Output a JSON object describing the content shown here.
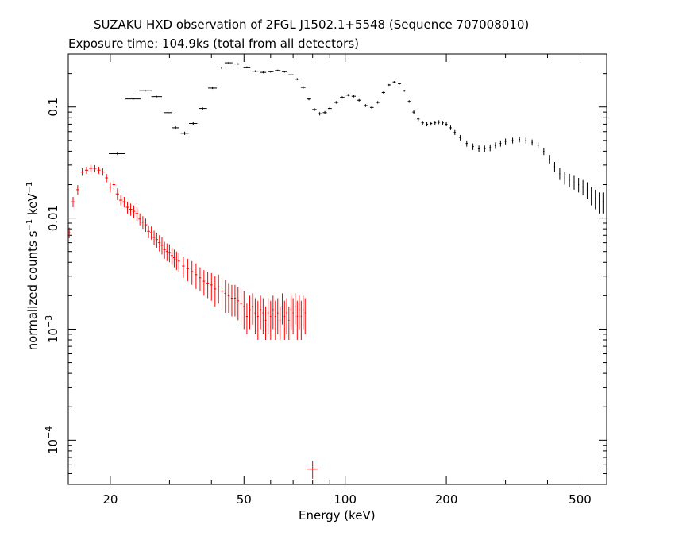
{
  "chart_data": {
    "type": "scatter",
    "title": "SUZAKU HXD observation of 2FGL J1502.1+5548 (Sequence 707008010)",
    "subtitle": "Exposure time: 104.9ks (total from all detectors)",
    "xlabel": "Energy (keV)",
    "ylabel": {
      "part1": "normalized counts s",
      "exp1": "−1",
      "part2": " keV",
      "exp2": "−1"
    },
    "x_scale": "log",
    "y_scale": "log",
    "xlim": [
      15,
      600
    ],
    "ylim": [
      4e-05,
      0.3
    ],
    "x_ticks": [
      {
        "value": 20,
        "label": "20"
      },
      {
        "value": 50,
        "label": "50"
      },
      {
        "value": 100,
        "label": "100"
      },
      {
        "value": 200,
        "label": "200"
      },
      {
        "value": 500,
        "label": "500"
      }
    ],
    "y_ticks": [
      {
        "value": 0.1,
        "base": "0.1",
        "exp": ""
      },
      {
        "value": 0.01,
        "base": "0.01",
        "exp": ""
      },
      {
        "value": 0.001,
        "base": "10",
        "exp": "−3"
      },
      {
        "value": 0.0001,
        "base": "10",
        "exp": "−4"
      }
    ],
    "series": [
      {
        "color": "#000000",
        "points": [
          [
            21.0,
            0.038,
            1.2,
            0.001
          ],
          [
            23.4,
            0.118,
            1.2,
            0.002
          ],
          [
            25.5,
            0.14,
            1.1,
            0.002
          ],
          [
            27.5,
            0.124,
            1.0,
            0.002
          ],
          [
            29.7,
            0.089,
            0.9,
            0.002
          ],
          [
            31.3,
            0.065,
            0.8,
            0.002
          ],
          [
            33.3,
            0.058,
            0.9,
            0.002
          ],
          [
            35.3,
            0.071,
            1.0,
            0.002
          ],
          [
            37.7,
            0.097,
            1.1,
            0.002
          ],
          [
            40.3,
            0.148,
            1.2,
            0.003
          ],
          [
            42.8,
            0.225,
            1.3,
            0.004
          ],
          [
            45.0,
            0.25,
            1.2,
            0.004
          ],
          [
            48.0,
            0.244,
            1.2,
            0.004
          ],
          [
            51.0,
            0.228,
            1.2,
            0.004
          ],
          [
            54.0,
            0.21,
            1.2,
            0.004
          ],
          [
            57.0,
            0.205,
            1.2,
            0.004
          ],
          [
            60.0,
            0.208,
            1.2,
            0.004
          ],
          [
            63.0,
            0.213,
            1.2,
            0.004
          ],
          [
            66.0,
            0.208,
            1.2,
            0.004
          ],
          [
            69.0,
            0.195,
            1.2,
            0.004
          ],
          [
            72.0,
            0.178,
            1.2,
            0.004
          ],
          [
            75.0,
            0.15,
            1.2,
            0.004
          ],
          [
            78.0,
            0.118,
            1.2,
            0.003
          ],
          [
            81.0,
            0.095,
            1.2,
            0.003
          ],
          [
            84.0,
            0.087,
            1.2,
            0.003
          ],
          [
            87.0,
            0.089,
            1.2,
            0.003
          ],
          [
            90.0,
            0.097,
            1.2,
            0.003
          ],
          [
            94.0,
            0.11,
            1.5,
            0.003
          ],
          [
            98.0,
            0.122,
            1.5,
            0.003
          ],
          [
            102.0,
            0.128,
            1.5,
            0.003
          ],
          [
            106.0,
            0.125,
            1.5,
            0.003
          ],
          [
            110.0,
            0.115,
            1.5,
            0.003
          ],
          [
            115.0,
            0.103,
            1.5,
            0.003
          ],
          [
            120.0,
            0.099,
            1.5,
            0.003
          ],
          [
            125.0,
            0.11,
            1.5,
            0.003
          ],
          [
            130.0,
            0.135,
            1.5,
            0.003
          ],
          [
            135.0,
            0.158,
            1.5,
            0.003
          ],
          [
            140.0,
            0.168,
            1.5,
            0.003
          ],
          [
            145.0,
            0.162,
            1.5,
            0.003
          ],
          [
            150.0,
            0.14,
            1.5,
            0.003
          ],
          [
            155.0,
            0.112,
            1.5,
            0.003
          ],
          [
            160.0,
            0.09,
            1.5,
            0.003
          ],
          [
            165.0,
            0.078,
            1.5,
            0.003
          ],
          [
            170.0,
            0.072,
            1.5,
            0.003
          ],
          [
            175.0,
            0.07,
            1.5,
            0.003
          ],
          [
            180.0,
            0.071,
            1.5,
            0.003
          ],
          [
            185.0,
            0.072,
            1.5,
            0.003
          ],
          [
            190.0,
            0.073,
            1.5,
            0.003
          ],
          [
            195.0,
            0.072,
            1.5,
            0.003
          ],
          [
            200.0,
            0.07,
            1.5,
            0.003
          ],
          [
            206.0,
            0.065,
            1.5,
            0.003
          ],
          [
            212.0,
            0.059,
            1.5,
            0.003
          ],
          [
            220.0,
            0.053,
            1.5,
            0.003
          ],
          [
            230.0,
            0.047,
            1.5,
            0.003
          ],
          [
            240.0,
            0.044,
            1.5,
            0.003
          ],
          [
            250.0,
            0.042,
            1.5,
            0.003
          ],
          [
            260.0,
            0.042,
            1.5,
            0.003
          ],
          [
            270.0,
            0.043,
            1.5,
            0.003
          ],
          [
            280.0,
            0.045,
            1.5,
            0.003
          ],
          [
            290.0,
            0.047,
            1.5,
            0.003
          ],
          [
            300.0,
            0.049,
            1.5,
            0.003
          ],
          [
            315.0,
            0.05,
            1.5,
            0.003
          ],
          [
            330.0,
            0.051,
            1.5,
            0.003
          ],
          [
            345.0,
            0.05,
            1.5,
            0.003
          ],
          [
            360.0,
            0.048,
            1.5,
            0.003
          ],
          [
            375.0,
            0.045,
            1.5,
            0.003
          ],
          [
            390.0,
            0.04,
            1.5,
            0.003
          ],
          [
            405.0,
            0.034,
            1.5,
            0.003
          ],
          [
            420.0,
            0.029,
            1.5,
            0.003
          ],
          [
            435.0,
            0.025,
            1.5,
            0.003
          ],
          [
            450.0,
            0.023,
            1.5,
            0.003
          ],
          [
            465.0,
            0.022,
            1.5,
            0.003
          ],
          [
            480.0,
            0.021,
            1.5,
            0.003
          ],
          [
            495.0,
            0.02,
            1.5,
            0.003
          ],
          [
            510.0,
            0.019,
            1.5,
            0.003
          ],
          [
            525.0,
            0.018,
            1.5,
            0.003
          ],
          [
            540.0,
            0.016,
            1.5,
            0.003
          ],
          [
            555.0,
            0.015,
            1.5,
            0.003
          ],
          [
            570.0,
            0.014,
            1.5,
            0.003
          ],
          [
            585.0,
            0.014,
            1.5,
            0.003
          ]
        ]
      },
      {
        "color": "#ff0000",
        "points": [
          [
            15.1,
            0.0074,
            0.1,
            0.0008
          ],
          [
            15.5,
            0.014,
            0.15,
            0.0015
          ],
          [
            16.0,
            0.018,
            0.15,
            0.0018
          ],
          [
            16.5,
            0.026,
            0.2,
            0.002
          ],
          [
            17.0,
            0.027,
            0.2,
            0.002
          ],
          [
            17.5,
            0.028,
            0.2,
            0.002
          ],
          [
            18.0,
            0.028,
            0.2,
            0.002
          ],
          [
            18.5,
            0.027,
            0.2,
            0.002
          ],
          [
            19.0,
            0.026,
            0.2,
            0.002
          ],
          [
            19.5,
            0.023,
            0.2,
            0.002
          ],
          [
            20.0,
            0.019,
            0.2,
            0.002
          ],
          [
            20.5,
            0.02,
            0.2,
            0.002
          ],
          [
            21.0,
            0.0165,
            0.25,
            0.002
          ],
          [
            21.5,
            0.0145,
            0.25,
            0.0015
          ],
          [
            22.0,
            0.014,
            0.25,
            0.0015
          ],
          [
            22.5,
            0.0125,
            0.25,
            0.0015
          ],
          [
            23.0,
            0.012,
            0.25,
            0.0015
          ],
          [
            23.5,
            0.0115,
            0.25,
            0.0015
          ],
          [
            24.0,
            0.011,
            0.25,
            0.0015
          ],
          [
            24.5,
            0.0098,
            0.25,
            0.0012
          ],
          [
            25.0,
            0.0092,
            0.25,
            0.0012
          ],
          [
            25.5,
            0.0087,
            0.25,
            0.0012
          ],
          [
            26.0,
            0.0076,
            0.25,
            0.001
          ],
          [
            26.5,
            0.0074,
            0.25,
            0.001
          ],
          [
            27.0,
            0.0067,
            0.25,
            0.001
          ],
          [
            27.5,
            0.0064,
            0.25,
            0.001
          ],
          [
            28.0,
            0.006,
            0.25,
            0.001
          ],
          [
            28.5,
            0.0057,
            0.25,
            0.001
          ],
          [
            29.0,
            0.0052,
            0.25,
            0.0009
          ],
          [
            29.5,
            0.005,
            0.25,
            0.0009
          ],
          [
            30.0,
            0.0049,
            0.25,
            0.0009
          ],
          [
            30.5,
            0.0046,
            0.25,
            0.0008
          ],
          [
            31.0,
            0.0044,
            0.25,
            0.0008
          ],
          [
            31.5,
            0.0042,
            0.25,
            0.0008
          ],
          [
            32.0,
            0.0041,
            0.25,
            0.0008
          ],
          [
            33.0,
            0.0037,
            0.3,
            0.0008
          ],
          [
            34.0,
            0.0035,
            0.3,
            0.0008
          ],
          [
            35.0,
            0.0033,
            0.3,
            0.0008
          ],
          [
            36.0,
            0.0031,
            0.3,
            0.0008
          ],
          [
            37.0,
            0.0029,
            0.3,
            0.0007
          ],
          [
            38.0,
            0.0027,
            0.3,
            0.0007
          ],
          [
            39.0,
            0.0026,
            0.3,
            0.0007
          ],
          [
            40.0,
            0.0025,
            0.3,
            0.0007
          ],
          [
            41.0,
            0.0023,
            0.3,
            0.0007
          ],
          [
            42.0,
            0.0024,
            0.3,
            0.0007
          ],
          [
            43.0,
            0.0022,
            0.3,
            0.0007
          ],
          [
            44.0,
            0.0021,
            0.3,
            0.0007
          ],
          [
            45.0,
            0.002,
            0.3,
            0.0006
          ],
          [
            46.0,
            0.0019,
            0.3,
            0.0006
          ],
          [
            47.0,
            0.0019,
            0.3,
            0.0006
          ],
          [
            48.0,
            0.0018,
            0.3,
            0.0006
          ],
          [
            49.0,
            0.0017,
            0.3,
            0.0006
          ],
          [
            50.0,
            0.0016,
            0.3,
            0.0006
          ],
          [
            51.0,
            0.0013,
            0.3,
            0.0004
          ],
          [
            52.0,
            0.0015,
            0.3,
            0.0005
          ],
          [
            53.0,
            0.0016,
            0.3,
            0.0005
          ],
          [
            54.0,
            0.0014,
            0.3,
            0.0005
          ],
          [
            55.0,
            0.0013,
            0.3,
            0.0005
          ],
          [
            56.0,
            0.0015,
            0.3,
            0.0005
          ],
          [
            57.0,
            0.0014,
            0.3,
            0.0005
          ],
          [
            58.0,
            0.0012,
            0.3,
            0.0004
          ],
          [
            59.0,
            0.0014,
            0.3,
            0.0005
          ],
          [
            60.0,
            0.0013,
            0.3,
            0.0005
          ],
          [
            61.0,
            0.0015,
            0.3,
            0.0005
          ],
          [
            62.0,
            0.0013,
            0.3,
            0.0005
          ],
          [
            63.0,
            0.0014,
            0.3,
            0.0005
          ],
          [
            64.0,
            0.0012,
            0.3,
            0.0004
          ],
          [
            65.0,
            0.0016,
            0.3,
            0.0005
          ],
          [
            66.0,
            0.0013,
            0.3,
            0.0005
          ],
          [
            67.0,
            0.0014,
            0.3,
            0.0005
          ],
          [
            68.0,
            0.0012,
            0.3,
            0.0004
          ],
          [
            69.0,
            0.0015,
            0.3,
            0.0005
          ],
          [
            70.0,
            0.0014,
            0.3,
            0.0005
          ],
          [
            71.0,
            0.0016,
            0.3,
            0.0005
          ],
          [
            72.0,
            0.0013,
            0.3,
            0.0005
          ],
          [
            73.0,
            0.0015,
            0.3,
            0.0005
          ],
          [
            74.0,
            0.0013,
            0.3,
            0.0005
          ],
          [
            75.0,
            0.0015,
            0.3,
            0.0005
          ],
          [
            76.0,
            0.0014,
            0.3,
            0.0005
          ],
          [
            80.0,
            5.5e-05,
            3.0,
            1e-05
          ]
        ]
      }
    ]
  }
}
